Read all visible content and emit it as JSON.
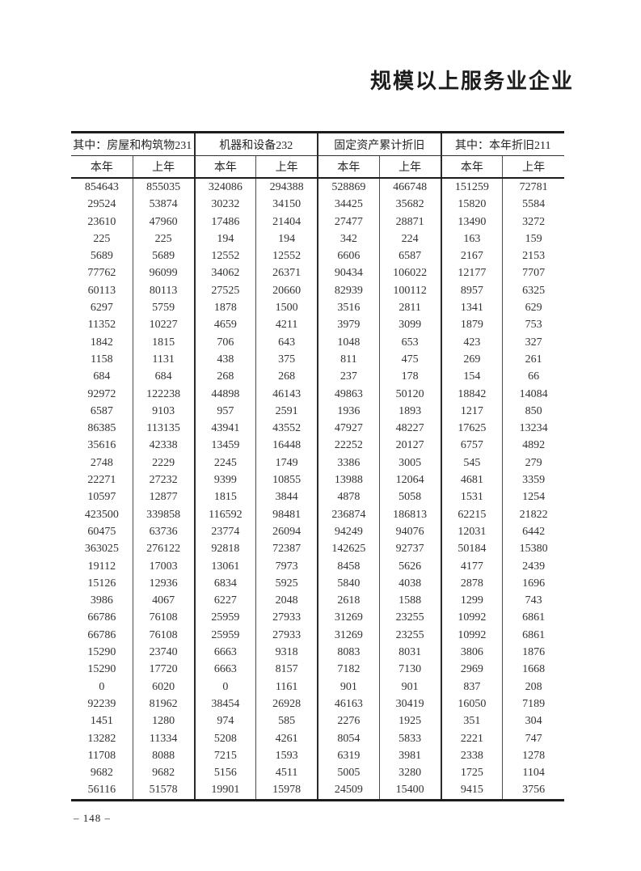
{
  "page": {
    "title": "规模以上服务业企业",
    "page_number": "– 148 –"
  },
  "table": {
    "groups": [
      {
        "label": "其中：房屋和构筑物231"
      },
      {
        "label": "机器和设备232"
      },
      {
        "label": "固定资产累计折旧"
      },
      {
        "label": "其中：本年折旧211"
      }
    ],
    "sub_headers": [
      "本年",
      "上年",
      "本年",
      "上年",
      "本年",
      "上年",
      "本年",
      "上年"
    ],
    "rows": [
      [
        854643,
        855035,
        324086,
        294388,
        528869,
        466748,
        151259,
        72781
      ],
      [
        29524,
        53874,
        30232,
        34150,
        34425,
        35682,
        15820,
        5584
      ],
      [
        23610,
        47960,
        17486,
        21404,
        27477,
        28871,
        13490,
        3272
      ],
      [
        225,
        225,
        194,
        194,
        342,
        224,
        163,
        159
      ],
      [
        5689,
        5689,
        12552,
        12552,
        6606,
        6587,
        2167,
        2153
      ],
      [
        77762,
        96099,
        34062,
        26371,
        90434,
        106022,
        12177,
        7707
      ],
      [
        60113,
        80113,
        27525,
        20660,
        82939,
        100112,
        8957,
        6325
      ],
      [
        6297,
        5759,
        1878,
        1500,
        3516,
        2811,
        1341,
        629
      ],
      [
        11352,
        10227,
        4659,
        4211,
        3979,
        3099,
        1879,
        753
      ],
      [
        1842,
        1815,
        706,
        643,
        1048,
        653,
        423,
        327
      ],
      [
        1158,
        1131,
        438,
        375,
        811,
        475,
        269,
        261
      ],
      [
        684,
        684,
        268,
        268,
        237,
        178,
        154,
        66
      ],
      [
        92972,
        122238,
        44898,
        46143,
        49863,
        50120,
        18842,
        14084
      ],
      [
        6587,
        9103,
        957,
        2591,
        1936,
        1893,
        1217,
        850
      ],
      [
        86385,
        113135,
        43941,
        43552,
        47927,
        48227,
        17625,
        13234
      ],
      [
        35616,
        42338,
        13459,
        16448,
        22252,
        20127,
        6757,
        4892
      ],
      [
        2748,
        2229,
        2245,
        1749,
        3386,
        3005,
        545,
        279
      ],
      [
        22271,
        27232,
        9399,
        10855,
        13988,
        12064,
        4681,
        3359
      ],
      [
        10597,
        12877,
        1815,
        3844,
        4878,
        5058,
        1531,
        1254
      ],
      [
        423500,
        339858,
        116592,
        98481,
        236874,
        186813,
        62215,
        21822
      ],
      [
        60475,
        63736,
        23774,
        26094,
        94249,
        94076,
        12031,
        6442
      ],
      [
        363025,
        276122,
        92818,
        72387,
        142625,
        92737,
        50184,
        15380
      ],
      [
        19112,
        17003,
        13061,
        7973,
        8458,
        5626,
        4177,
        2439
      ],
      [
        15126,
        12936,
        6834,
        5925,
        5840,
        4038,
        2878,
        1696
      ],
      [
        3986,
        4067,
        6227,
        2048,
        2618,
        1588,
        1299,
        743
      ],
      [
        66786,
        76108,
        25959,
        27933,
        31269,
        23255,
        10992,
        6861
      ],
      [
        66786,
        76108,
        25959,
        27933,
        31269,
        23255,
        10992,
        6861
      ],
      [
        15290,
        23740,
        6663,
        9318,
        8083,
        8031,
        3806,
        1876
      ],
      [
        15290,
        17720,
        6663,
        8157,
        7182,
        7130,
        2969,
        1668
      ],
      [
        0,
        6020,
        0,
        1161,
        901,
        901,
        837,
        208
      ],
      [
        92239,
        81962,
        38454,
        26928,
        46163,
        30419,
        16050,
        7189
      ],
      [
        1451,
        1280,
        974,
        585,
        2276,
        1925,
        351,
        304
      ],
      [
        13282,
        11334,
        5208,
        4261,
        8054,
        5833,
        2221,
        747
      ],
      [
        11708,
        8088,
        7215,
        1593,
        6319,
        3981,
        2338,
        1278
      ],
      [
        9682,
        9682,
        5156,
        4511,
        5005,
        3280,
        1725,
        1104
      ],
      [
        56116,
        51578,
        19901,
        15978,
        24509,
        15400,
        9415,
        3756
      ]
    ]
  }
}
